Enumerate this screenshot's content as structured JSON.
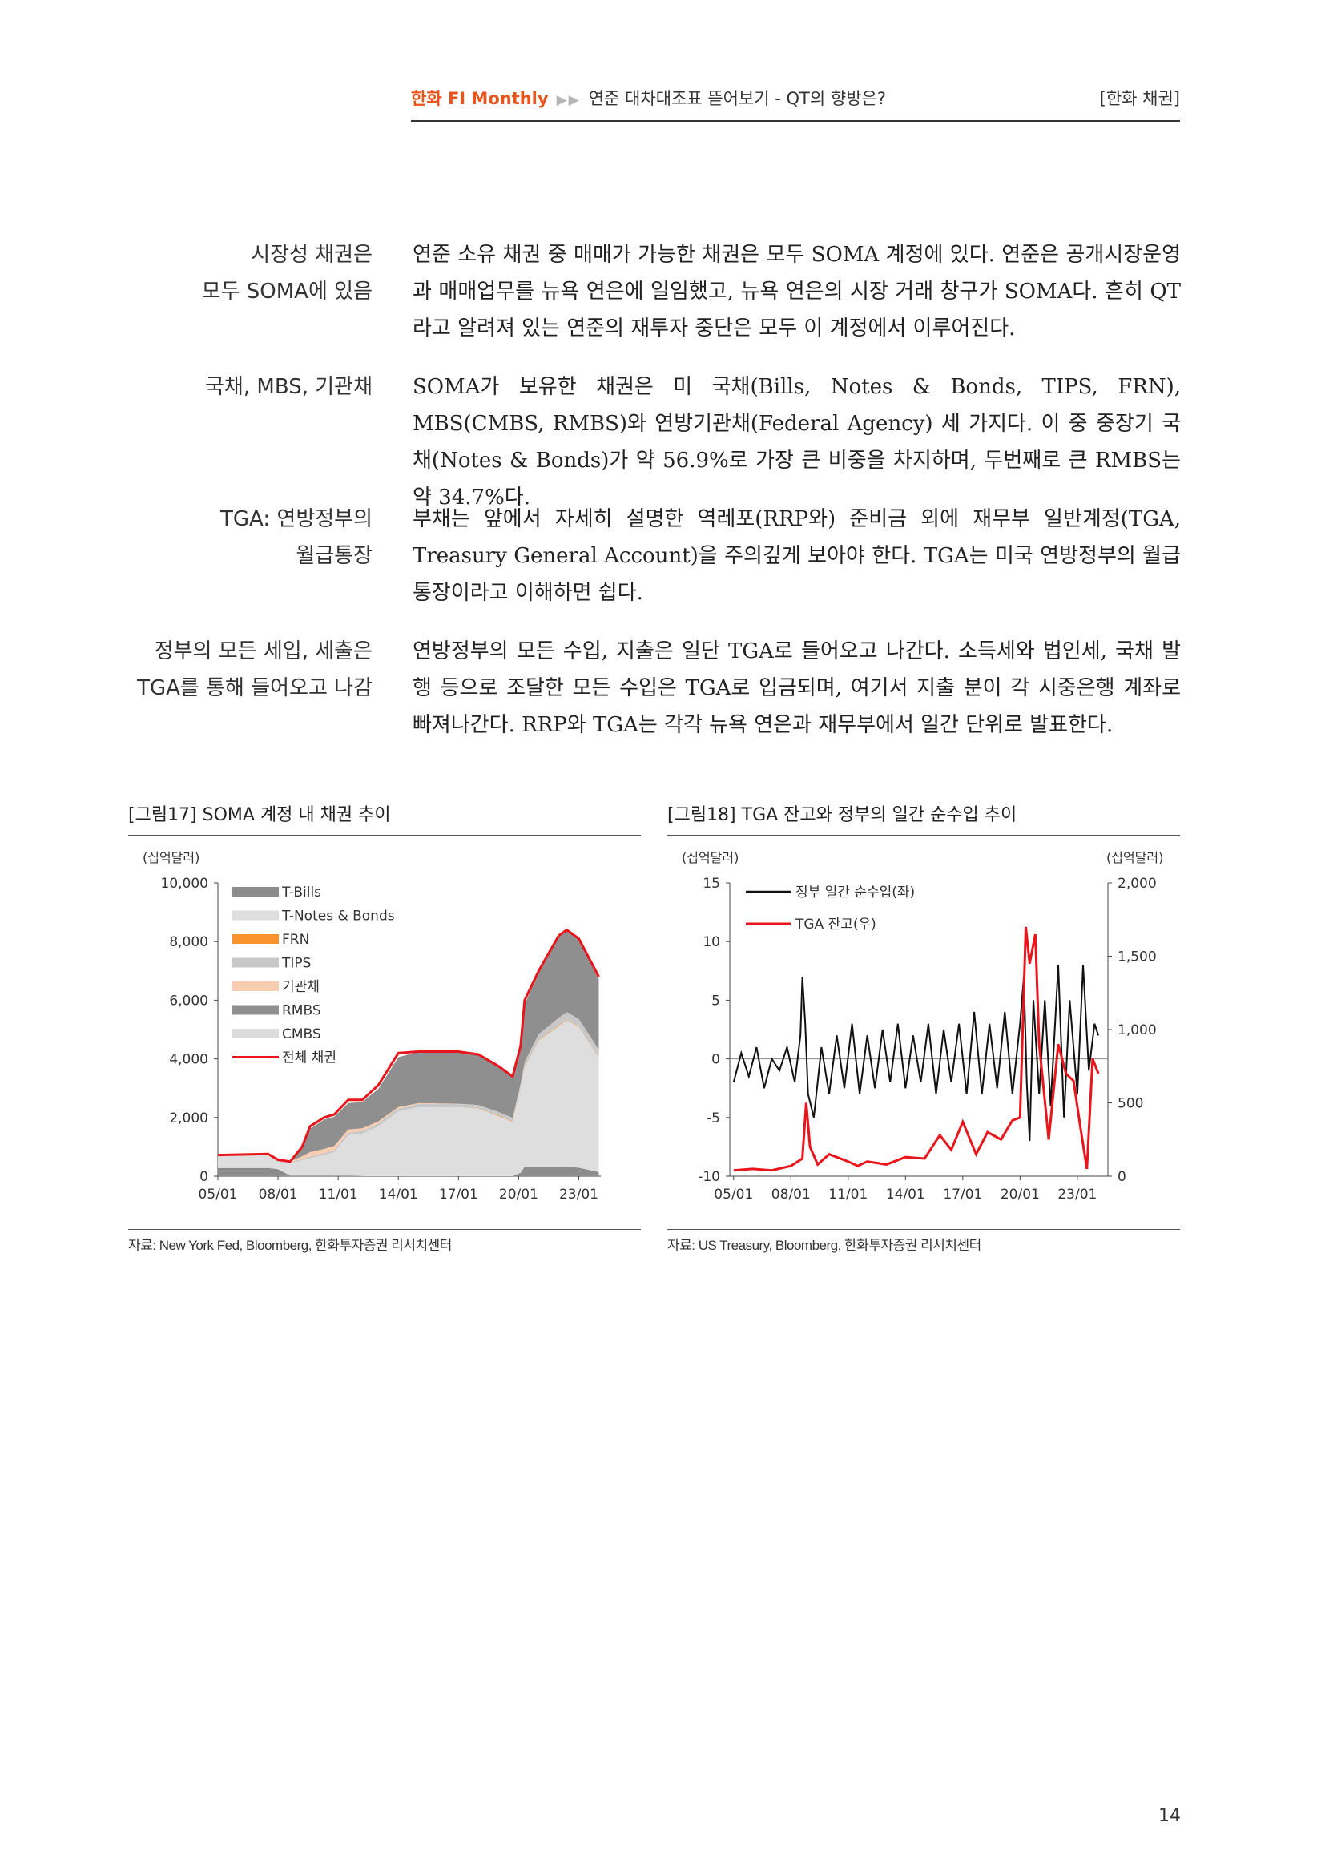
{
  "header": {
    "brand": "한화 FI Monthly",
    "arrows": "▶▶",
    "subtitle": "연준 대차대조표 뜯어보기 - QT의 향방은?",
    "category": "[한화 채권]"
  },
  "sections": [
    {
      "side": "시장성 채권은\n모두 SOMA에 있음",
      "body": "연준 소유 채권 중 매매가 가능한 채권은 모두 SOMA 계정에 있다. 연준은 공개시장운영과 매매업무를 뉴욕 연은에 일임했고, 뉴욕 연은의 시장 거래 창구가 SOMA다. 흔히 QT라고 알려져 있는 연준의 재투자 중단은 모두 이 계정에서 이루어진다."
    },
    {
      "side": "국채, MBS, 기관채",
      "body": "SOMA가 보유한 채권은 미 국채(Bills, Notes & Bonds, TIPS, FRN), MBS(CMBS, RMBS)와 연방기관채(Federal Agency) 세 가지다. 이 중 중장기 국채(Notes & Bonds)가 약 56.9%로 가장 큰 비중을 차지하며, 두번째로 큰 RMBS는 약 34.7%다."
    },
    {
      "side": "TGA: 연방정부의\n월급통장",
      "body": "부채는 앞에서 자세히 설명한 역레포(RRP와) 준비금 외에 재무부 일반계정(TGA, Treasury General Account)을 주의깊게 보아야 한다. TGA는 미국 연방정부의 월급 통장이라고 이해하면 쉽다."
    },
    {
      "side": "정부의 모든 세입, 세출은\nTGA를 통해 들어오고 나감",
      "body": "연방정부의 모든 수입, 지출은 일단 TGA로 들어오고 나간다. 소득세와 법인세, 국채 발행 등으로 조달한 모든 수입은 TGA로 입금되며, 여기서 지출 분이 각 시중은행 계좌로 빠져나간다. RRP와 TGA는 각각 뉴욕 연은과 재무부에서 일간 단위로 발표한다."
    }
  ],
  "figure17": {
    "title": "[그림17]  SOMA 계정 내 채권 추이",
    "source": "자료: New York Fed, Bloomberg, 한화투자증권 리서치센터",
    "unit": "(십억달러)"
  },
  "figure18": {
    "title": "[그림18]  TGA 잔고와 정부의 일간 순수입 추이",
    "source": "자료: US Treasury, Bloomberg, 한화투자증권 리서치센터",
    "unit_left": "(십억달러)",
    "unit_right": "(십억달러)"
  },
  "page_number": "14",
  "chart_data": [
    {
      "type": "area",
      "title": "SOMA 계정 내 채권 추이",
      "ylabel": "(십억달러)",
      "ylim": [
        0,
        10000
      ],
      "yticks": [
        "0",
        "2,000",
        "4,000",
        "6,000",
        "8,000",
        "10,000"
      ],
      "xticks": [
        "05/01",
        "08/01",
        "11/01",
        "14/01",
        "17/01",
        "20/01",
        "23/01"
      ],
      "x": [
        2005.0,
        2007.5,
        2008.0,
        2008.6,
        2009.2,
        2009.6,
        2010.3,
        2010.8,
        2011.5,
        2012.2,
        2013.0,
        2014.0,
        2015.0,
        2017.0,
        2018.0,
        2019.0,
        2019.7,
        2020.1,
        2020.3,
        2021.0,
        2022.0,
        2022.4,
        2023.0,
        2024.0
      ],
      "series": [
        {
          "name": "T-Bills",
          "color": "#8c8c8c",
          "values": [
            280,
            280,
            240,
            20,
            20,
            20,
            20,
            20,
            20,
            0,
            0,
            0,
            0,
            0,
            0,
            0,
            0,
            120,
            320,
            320,
            320,
            320,
            290,
            140
          ]
        },
        {
          "name": "T-Notes & Bonds",
          "color": "#dedede",
          "values": [
            420,
            440,
            240,
            430,
            520,
            600,
            700,
            800,
            1380,
            1450,
            1700,
            2200,
            2350,
            2350,
            2300,
            2050,
            1850,
            2900,
            3400,
            4300,
            4800,
            5000,
            4800,
            3900
          ]
        },
        {
          "name": "FRN",
          "color": "#f7922d",
          "values": [
            0,
            0,
            0,
            0,
            0,
            0,
            0,
            0,
            0,
            0,
            0,
            0,
            0,
            0,
            10,
            20,
            20,
            20,
            20,
            20,
            20,
            20,
            15,
            15
          ]
        },
        {
          "name": "TIPS",
          "color": "#c8c8c8",
          "values": [
            20,
            30,
            30,
            30,
            40,
            50,
            60,
            70,
            80,
            90,
            100,
            110,
            110,
            110,
            110,
            110,
            110,
            120,
            150,
            200,
            250,
            250,
            250,
            250
          ]
        },
        {
          "name": "기관채",
          "color": "#f9cdb0",
          "values": [
            0,
            0,
            0,
            20,
            100,
            150,
            150,
            140,
            110,
            90,
            70,
            45,
            30,
            10,
            5,
            5,
            5,
            5,
            5,
            5,
            5,
            5,
            5,
            5
          ]
        },
        {
          "name": "RMBS",
          "color": "#8f8f8f",
          "values": [
            0,
            0,
            0,
            0,
            300,
            800,
            1000,
            1000,
            900,
            900,
            1100,
            1700,
            1750,
            1760,
            1700,
            1550,
            1400,
            1250,
            1950,
            2150,
            2750,
            2780,
            2700,
            2400
          ]
        },
        {
          "name": "CMBS",
          "color": "#dcdcdc",
          "values": [
            0,
            0,
            0,
            0,
            0,
            0,
            0,
            0,
            0,
            0,
            0,
            0,
            0,
            0,
            0,
            0,
            0,
            0,
            5,
            10,
            10,
            10,
            10,
            10
          ]
        },
        {
          "name": "전체 채권",
          "color": "#e8161c",
          "type": "line",
          "values": [
            720,
            760,
            560,
            500,
            1000,
            1700,
            2000,
            2100,
            2600,
            2600,
            3100,
            4200,
            4250,
            4250,
            4150,
            3750,
            3400,
            4450,
            6000,
            7000,
            8200,
            8400,
            8100,
            6800
          ]
        }
      ]
    },
    {
      "type": "line",
      "title": "TGA 잔고와 정부의 일간 순수입 추이",
      "ylabel_left": "(십억달러)",
      "ylabel_right": "(십억달러)",
      "ylim_left": [
        -10,
        15
      ],
      "ylim_right": [
        0,
        2000
      ],
      "yticks_left": [
        "-10",
        "-5",
        "0",
        "5",
        "10",
        "15"
      ],
      "yticks_right": [
        "0",
        "500",
        "1,000",
        "1,500",
        "2,000"
      ],
      "xticks": [
        "05/01",
        "08/01",
        "11/01",
        "14/01",
        "17/01",
        "20/01",
        "23/01"
      ],
      "series": [
        {
          "name": "정부 일간 순수입(좌)",
          "color": "#111111",
          "axis": "left",
          "x": [
            2005.0,
            2005.4,
            2005.8,
            2006.2,
            2006.6,
            2007.0,
            2007.4,
            2007.8,
            2008.2,
            2008.5,
            2008.6,
            2008.75,
            2008.9,
            2009.2,
            2009.6,
            2010.0,
            2010.4,
            2010.8,
            2011.2,
            2011.6,
            2012.0,
            2012.4,
            2012.8,
            2013.2,
            2013.6,
            2014.0,
            2014.4,
            2014.8,
            2015.2,
            2015.6,
            2016.0,
            2016.4,
            2016.8,
            2017.2,
            2017.6,
            2018.0,
            2018.4,
            2018.8,
            2019.2,
            2019.6,
            2020.0,
            2020.2,
            2020.35,
            2020.5,
            2020.7,
            2021.0,
            2021.3,
            2021.6,
            2022.0,
            2022.3,
            2022.6,
            2023.0,
            2023.3,
            2023.6,
            2023.9,
            2024.1
          ],
          "values": [
            -2,
            0.5,
            -1.5,
            1,
            -2.5,
            0,
            -1,
            1,
            -2,
            2,
            7,
            3,
            -3,
            -5,
            1,
            -3,
            2,
            -2.5,
            3,
            -3,
            2,
            -2.5,
            2.5,
            -2,
            3,
            -2.5,
            2,
            -2,
            3,
            -3,
            2.5,
            -2,
            3,
            -3,
            4,
            -3,
            3,
            -2.5,
            4,
            -3,
            3,
            7,
            -2,
            -7,
            5,
            -3,
            5,
            -4,
            8,
            -5,
            5,
            -3,
            8,
            -1,
            3,
            2
          ]
        },
        {
          "name": "TGA 잔고(우)",
          "color": "#e8161c",
          "axis": "right",
          "x": [
            2005.0,
            2006.0,
            2007.0,
            2008.0,
            2008.6,
            2008.8,
            2009.0,
            2009.4,
            2010.0,
            2011.0,
            2011.5,
            2012.0,
            2013.0,
            2014.0,
            2015.0,
            2015.8,
            2016.4,
            2017.0,
            2017.7,
            2018.3,
            2019.0,
            2019.6,
            2020.0,
            2020.3,
            2020.5,
            2020.8,
            2021.0,
            2021.5,
            2022.0,
            2022.4,
            2022.8,
            2023.2,
            2023.5,
            2023.8,
            2024.1
          ],
          "values": [
            40,
            50,
            40,
            70,
            120,
            500,
            200,
            80,
            150,
            100,
            70,
            100,
            80,
            130,
            120,
            280,
            180,
            370,
            150,
            300,
            250,
            380,
            400,
            1700,
            1450,
            1650,
            900,
            250,
            900,
            700,
            650,
            300,
            50,
            800,
            700
          ]
        }
      ]
    }
  ]
}
